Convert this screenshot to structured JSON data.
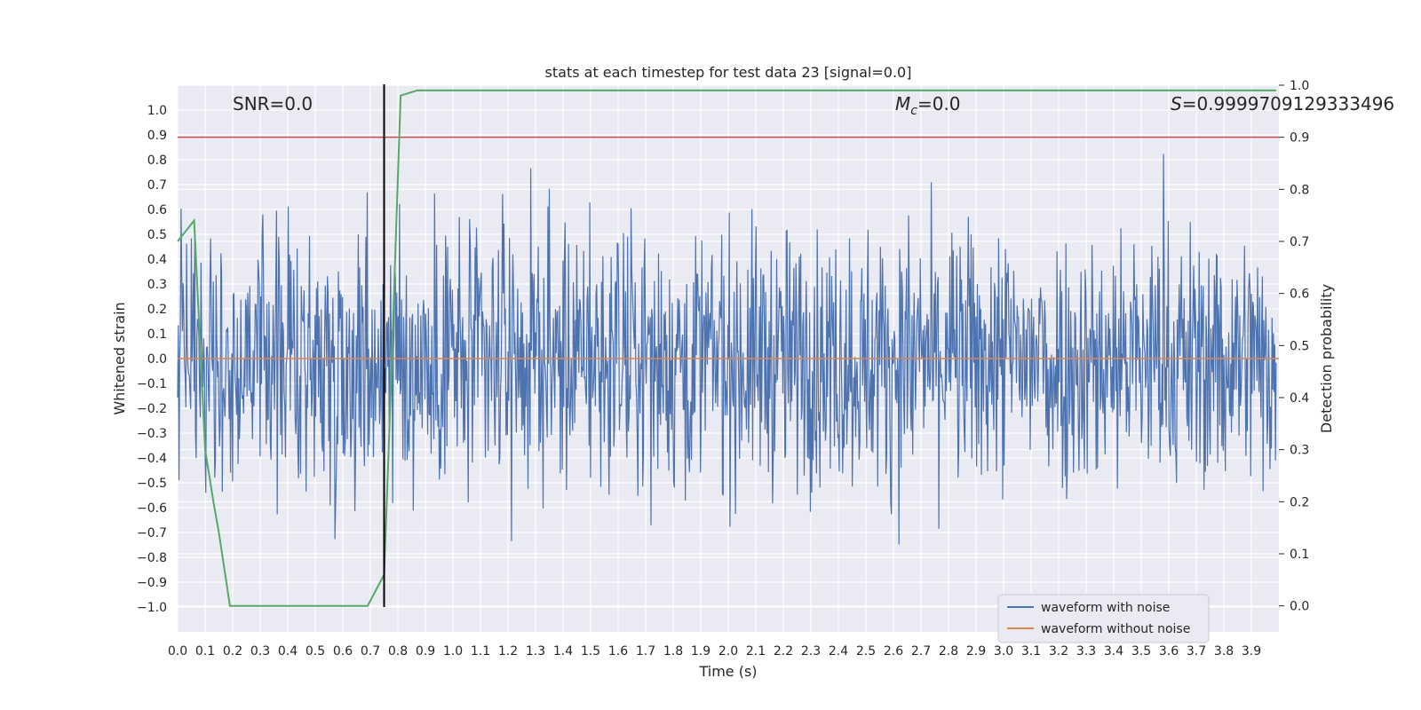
{
  "chart_data": {
    "type": "line",
    "title": "stats at each timestep for test data 23 [signal=0.0]",
    "xlabel": "Time (s)",
    "ylabel": "Whitened strain",
    "y2label": "Detection probability",
    "xlim": [
      0.0,
      4.0
    ],
    "ylim": [
      -1.1,
      1.1
    ],
    "y2lim": [
      -0.05,
      1.0
    ],
    "xticks": [
      "0.0",
      "0.1",
      "0.2",
      "0.3",
      "0.4",
      "0.5",
      "0.6",
      "0.7",
      "0.8",
      "0.9",
      "1.0",
      "1.1",
      "1.2",
      "1.3",
      "1.4",
      "1.5",
      "1.6",
      "1.7",
      "1.8",
      "1.9",
      "2.0",
      "2.1",
      "2.2",
      "2.3",
      "2.4",
      "2.5",
      "2.6",
      "2.7",
      "2.8",
      "2.9",
      "3.0",
      "3.1",
      "3.2",
      "3.3",
      "3.4",
      "3.5",
      "3.6",
      "3.7",
      "3.8",
      "3.9"
    ],
    "yticks": [
      "1.0",
      "0.9",
      "0.8",
      "0.7",
      "0.6",
      "0.5",
      "0.4",
      "0.3",
      "0.2",
      "0.1",
      "0.0",
      "−0.1",
      "−0.2",
      "−0.3",
      "−0.4",
      "−0.5",
      "−0.6",
      "−0.7",
      "−0.8",
      "−0.9",
      "−1.0"
    ],
    "y2ticks": [
      "1.0",
      "0.9",
      "0.8",
      "0.7",
      "0.6",
      "0.5",
      "0.4",
      "0.3",
      "0.2",
      "0.1",
      "0.0"
    ],
    "annotations": {
      "snr": "SNR=0.0",
      "mc_symbol": "M",
      "mc_sub": "c",
      "mc_value": "=0.0",
      "s_symbol": "S",
      "s_value": "=0.9999709129333496"
    },
    "legend": {
      "position": "lower right",
      "entries": [
        "waveform with noise",
        "waveform without noise"
      ]
    },
    "series": [
      {
        "name": "waveform with noise",
        "color": "#4c72b0",
        "description": "whitened noise, approx. uniform in [-1, 1], 4 s sampled"
      },
      {
        "name": "waveform without noise",
        "color": "#dd8452",
        "values_constant": 0.0
      },
      {
        "name": "detection probability",
        "color": "#55a868",
        "axis": "y2",
        "x": [
          0.0,
          0.06,
          0.1,
          0.13,
          0.15,
          0.19,
          0.25,
          0.3,
          0.4,
          0.5,
          0.6,
          0.69,
          0.75,
          0.77,
          0.81,
          0.87,
          1.0,
          2.0,
          3.0,
          3.99
        ],
        "y": [
          0.7,
          0.74,
          0.3,
          0.2,
          0.14,
          0.0,
          0.0,
          0.0,
          0.0,
          0.0,
          0.0,
          0.0,
          0.06,
          0.35,
          0.98,
          0.99,
          0.99,
          0.99,
          0.99,
          0.99
        ]
      }
    ],
    "threshold_line": {
      "axis": "y2",
      "value": 0.9,
      "color": "#c44e52"
    },
    "vertical_marker": {
      "x": 0.75,
      "color": "#000000"
    }
  }
}
